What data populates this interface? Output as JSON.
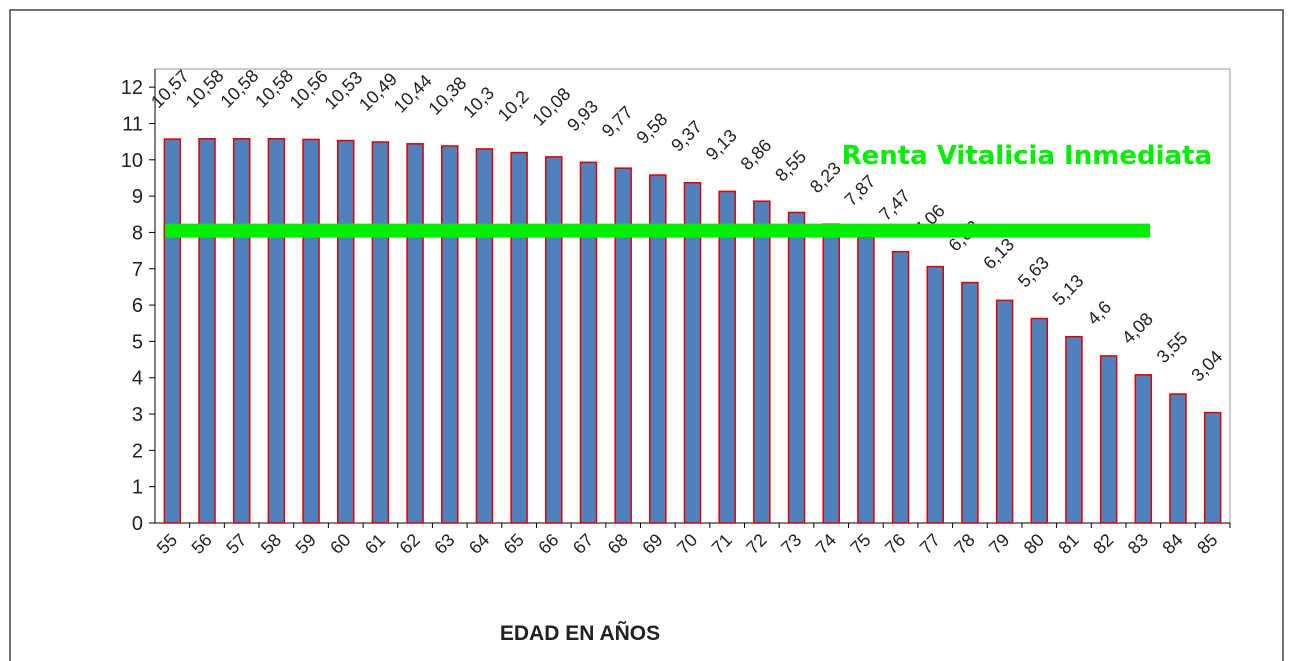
{
  "chart_data": {
    "type": "bar",
    "xlabel": "EDAD  EN AÑOS",
    "annotation": "Renta Vitalicia Inmediata",
    "categories": [
      "55",
      "56",
      "57",
      "58",
      "59",
      "60",
      "61",
      "62",
      "63",
      "64",
      "65",
      "66",
      "67",
      "68",
      "69",
      "70",
      "71",
      "72",
      "73",
      "74",
      "75",
      "76",
      "77",
      "78",
      "79",
      "80",
      "81",
      "82",
      "83",
      "84",
      "85"
    ],
    "values": [
      10.57,
      10.58,
      10.58,
      10.58,
      10.56,
      10.53,
      10.49,
      10.44,
      10.38,
      10.3,
      10.2,
      10.08,
      9.93,
      9.77,
      9.58,
      9.37,
      9.13,
      8.86,
      8.55,
      8.23,
      7.87,
      7.47,
      7.06,
      6.62,
      6.13,
      5.63,
      5.13,
      4.6,
      4.08,
      3.55,
      3.04
    ],
    "value_labels": [
      "10,57",
      "10,58",
      "10,58",
      "10,58",
      "10,56",
      "10,53",
      "10,49",
      "10,44",
      "10,38",
      "10,3",
      "10,2",
      "10,08",
      "9,93",
      "9,77",
      "9,58",
      "9,37",
      "9,13",
      "8,86",
      "8,55",
      "8,23",
      "7,87",
      "7,47",
      "7,06",
      "6,62",
      "6,13",
      "5,63",
      "5,13",
      "4,6",
      "4,08",
      "3,55",
      "3,04"
    ],
    "color": "#4f81bd",
    "edge_color": "#e00000",
    "reference_line": {
      "value": 8.05,
      "color": "#00ee00"
    },
    "ylim": [
      0,
      12.5
    ],
    "yticks": [
      0,
      1,
      2,
      3,
      4,
      5,
      6,
      7,
      8,
      9,
      10,
      11,
      12
    ]
  }
}
